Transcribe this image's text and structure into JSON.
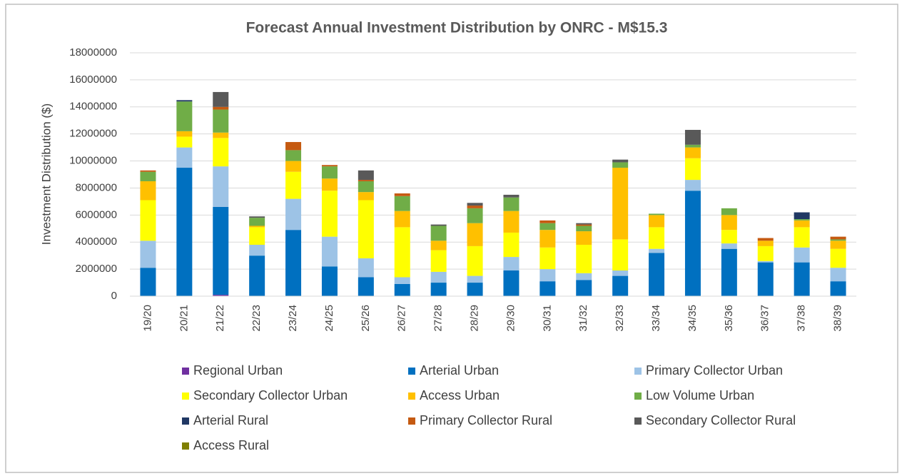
{
  "chart_data": {
    "type": "stacked_bar",
    "title": "Forecast Annual Investment Distribution by ONRC - M$15.3",
    "y_label": "Investment Distribution ($)",
    "categories": [
      "19/20",
      "20/21",
      "21/22",
      "22/23",
      "23/24",
      "24/25",
      "25/26",
      "26/27",
      "27/28",
      "28/29",
      "29/30",
      "30/31",
      "31/32",
      "32/33",
      "33/34",
      "34/35",
      "35/36",
      "36/37",
      "37/38",
      "38/39"
    ],
    "ylim": [
      0,
      18000000
    ],
    "yticks": [
      0,
      2000000,
      4000000,
      6000000,
      8000000,
      10000000,
      12000000,
      14000000,
      16000000,
      18000000
    ],
    "grid": true,
    "legend": "bottom",
    "series": [
      {
        "name": "Regional Urban",
        "color": "#7030a0",
        "values": [
          0,
          0,
          100000,
          0,
          0,
          0,
          0,
          0,
          0,
          0,
          0,
          0,
          0,
          0,
          0,
          0,
          0,
          0,
          0,
          0
        ]
      },
      {
        "name": "Arterial Urban",
        "color": "#0070c0",
        "values": [
          2100000,
          9500000,
          6500000,
          3000000,
          4900000,
          2200000,
          1400000,
          900000,
          1000000,
          1000000,
          1900000,
          1100000,
          1200000,
          1500000,
          3200000,
          7800000,
          3500000,
          2500000,
          2500000,
          1100000
        ]
      },
      {
        "name": "Primary Collector Urban",
        "color": "#9dc3e6",
        "values": [
          2000000,
          1500000,
          3000000,
          800000,
          2300000,
          2200000,
          1400000,
          500000,
          800000,
          500000,
          1000000,
          900000,
          500000,
          400000,
          300000,
          800000,
          400000,
          100000,
          1100000,
          1000000
        ]
      },
      {
        "name": "Secondary Collector Urban",
        "color": "#ffff00",
        "values": [
          3000000,
          800000,
          2100000,
          1300000,
          2000000,
          3400000,
          4300000,
          3700000,
          1600000,
          2200000,
          1800000,
          1600000,
          2100000,
          2300000,
          1600000,
          1600000,
          1000000,
          1100000,
          1500000,
          1400000
        ]
      },
      {
        "name": "Access Urban",
        "color": "#ffc000",
        "values": [
          1400000,
          400000,
          400000,
          100000,
          800000,
          900000,
          600000,
          1200000,
          700000,
          1700000,
          1600000,
          1300000,
          1000000,
          5300000,
          900000,
          800000,
          1100000,
          400000,
          500000,
          600000
        ]
      },
      {
        "name": "Low Volume Urban",
        "color": "#70ad47",
        "values": [
          700000,
          2200000,
          1700000,
          600000,
          800000,
          900000,
          800000,
          1100000,
          1100000,
          1100000,
          1000000,
          500000,
          400000,
          400000,
          100000,
          200000,
          500000,
          0,
          100000,
          100000
        ]
      },
      {
        "name": "Arterial Rural",
        "color": "#203864",
        "values": [
          0,
          100000,
          0,
          0,
          0,
          0,
          0,
          0,
          0,
          0,
          0,
          0,
          0,
          0,
          0,
          0,
          0,
          0,
          500000,
          0
        ]
      },
      {
        "name": "Primary Collector Rural",
        "color": "#c55a11",
        "values": [
          100000,
          0,
          200000,
          0,
          600000,
          100000,
          100000,
          200000,
          0,
          200000,
          0,
          200000,
          100000,
          0,
          0,
          0,
          0,
          200000,
          0,
          200000
        ]
      },
      {
        "name": "Secondary Collector Rural",
        "color": "#595959",
        "values": [
          0,
          0,
          1100000,
          100000,
          0,
          0,
          700000,
          0,
          100000,
          200000,
          200000,
          0,
          100000,
          200000,
          0,
          1100000,
          0,
          0,
          0,
          0
        ]
      },
      {
        "name": "Access Rural",
        "color": "#7f7f00",
        "values": [
          0,
          0,
          0,
          0,
          0,
          0,
          0,
          0,
          0,
          0,
          0,
          0,
          0,
          0,
          0,
          0,
          0,
          0,
          0,
          0
        ]
      }
    ]
  }
}
